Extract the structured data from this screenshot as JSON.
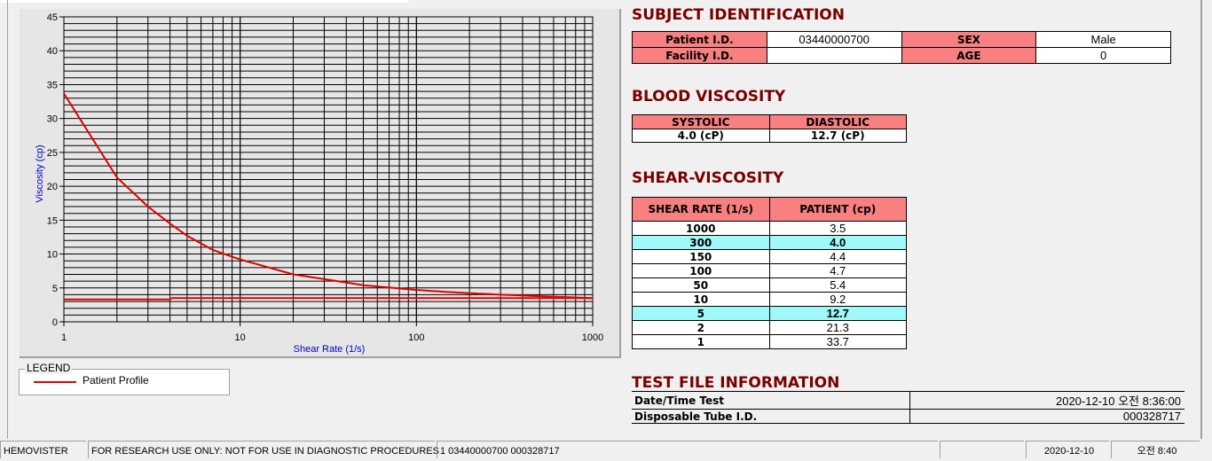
{
  "chart_data": {
    "type": "line",
    "xlabel": "Shear Rate (1/s)",
    "ylabel": "Viscosity (cp)",
    "x_scale": "log",
    "xlim": [
      1,
      1000
    ],
    "ylim": [
      0,
      45
    ],
    "xticks": [
      "1",
      "10",
      "100",
      "1000"
    ],
    "yticks": [
      "0",
      "5",
      "10",
      "15",
      "20",
      "25",
      "30",
      "35",
      "40",
      "45"
    ],
    "grid": true,
    "legend_placement": "below-left",
    "series": [
      {
        "name": "Patient Profile",
        "color": "#e00000",
        "x": [
          1,
          2,
          3,
          4,
          5,
          7,
          10,
          20,
          30,
          50,
          100,
          150,
          300,
          1000
        ],
        "values": [
          33.7,
          21.3,
          17,
          14.5,
          12.7,
          10.6,
          9.2,
          7.0,
          6.3,
          5.4,
          4.7,
          4.4,
          4.0,
          3.5
        ]
      },
      {
        "color": "#e00000",
        "x": [
          1,
          4,
          4.1,
          1000
        ],
        "values": [
          3.3,
          3.3,
          3.5,
          3.5
        ]
      }
    ]
  },
  "legend": {
    "title": "LEGEND",
    "items": [
      {
        "label": "Patient Profile",
        "color": "#e00000"
      }
    ]
  },
  "subject": {
    "title": "SUBJECT IDENTIFICATION",
    "patient_id_label": "Patient I.D.",
    "patient_id": "03440000700",
    "sex_label": "SEX",
    "sex": "Male",
    "facility_label": "Facility I.D.",
    "facility": "",
    "age_label": "AGE",
    "age": "0"
  },
  "blood": {
    "title": "BLOOD VISCOSITY",
    "systolic_label": "SYSTOLIC",
    "diastolic_label": "DIASTOLIC",
    "systolic": "4.0 (cP)",
    "diastolic": "12.7 (cP)"
  },
  "shear": {
    "title": "SHEAR-VISCOSITY",
    "col1": "SHEAR RATE (1/s)",
    "col2": "PATIENT (cp)",
    "rows": [
      {
        "rate": "1000",
        "value": "3.5",
        "highlight": false
      },
      {
        "rate": "300",
        "value": "4.0",
        "highlight": true
      },
      {
        "rate": "150",
        "value": "4.4",
        "highlight": false
      },
      {
        "rate": "100",
        "value": "4.7",
        "highlight": false
      },
      {
        "rate": "50",
        "value": "5.4",
        "highlight": false
      },
      {
        "rate": "10",
        "value": "9.2",
        "highlight": false
      },
      {
        "rate": "5",
        "value": "12.7",
        "highlight": true
      },
      {
        "rate": "2",
        "value": "21.3",
        "highlight": false
      },
      {
        "rate": "1",
        "value": "33.7",
        "highlight": false
      }
    ]
  },
  "testfile": {
    "title": "TEST FILE INFORMATION",
    "date_label": "Date/Time Test",
    "date": "2020-12-10  오전 8:36:00",
    "tube_label": "Disposable Tube I.D.",
    "tube": "000328717"
  },
  "status": {
    "app": "HEMOVISTER",
    "notice": "FOR RESEARCH USE ONLY: NOT FOR USE IN DIAGNOSTIC PROCEDURES",
    "record": "1  03440000700  000328717",
    "empty": "",
    "date": "2020-12-10",
    "time": "오전 8:40"
  }
}
